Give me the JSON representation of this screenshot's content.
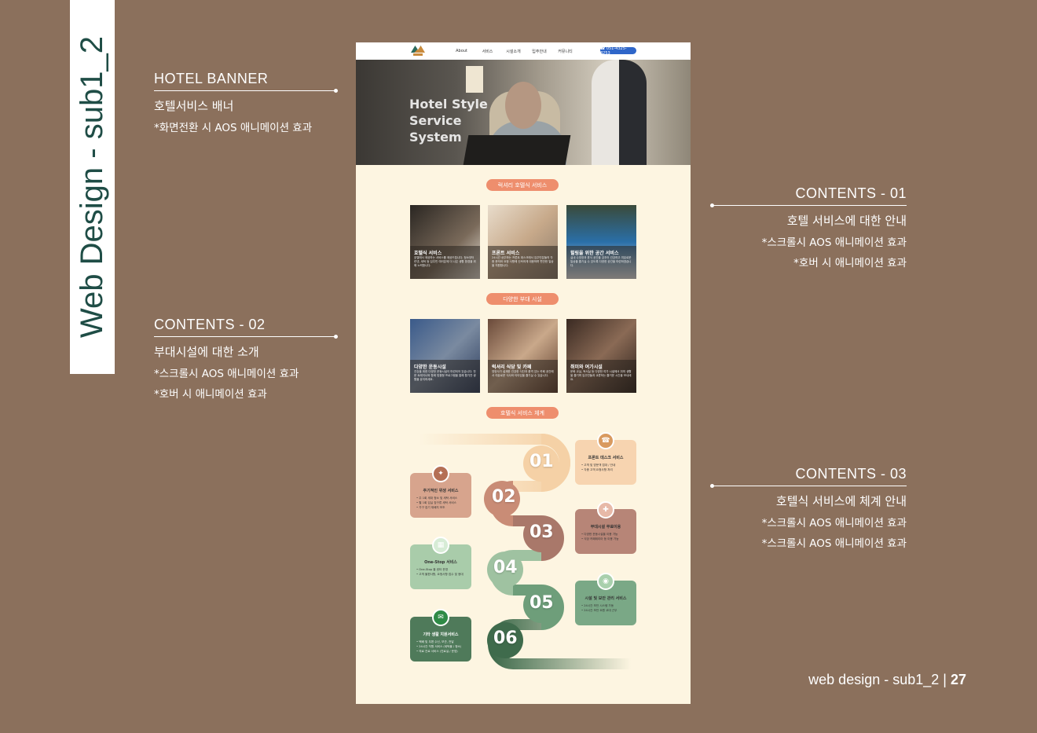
{
  "sidebar_title": "Web Design - sub1_2",
  "annotations": {
    "banner": {
      "title": "HOTEL BANNER",
      "sub": "호텔서비스 배너",
      "notes": [
        "*화면전환 시 AOS 애니메이션 효과"
      ]
    },
    "c01": {
      "title": "CONTENTS - 01",
      "sub": "호텔 서비스에 대한 안내",
      "notes": [
        "*스크롤시 AOS 애니메이션 효과",
        "*호버 시 애니메이션 효과"
      ]
    },
    "c02": {
      "title": "CONTENTS - 02",
      "sub": "부대시설에 대한 소개",
      "notes": [
        "*스크롤시 AOS 애니메이션 효과",
        "*호버 시 애니메이션 효과"
      ]
    },
    "c03": {
      "title": "CONTENTS - 03",
      "sub": "호텔식 서비스에 체계 안내",
      "notes": [
        "*스크롤시 AOS 애니메이션 효과",
        "*스크롤시 AOS 애니메이션 효과"
      ]
    }
  },
  "footer": {
    "label": "web design - sub1_2",
    "sep": " | ",
    "page": "27"
  },
  "mock": {
    "nav": [
      "About",
      "서비스",
      "시설소개",
      "입주안내",
      "커뮤니티"
    ],
    "phone": "☎ 051-4325-8253",
    "hero": [
      "Hotel Style",
      "Service",
      "System"
    ],
    "sections": [
      "럭셔리 호텔식 서비스",
      "다양한 부대 시설",
      "호텔식 서비스 체계"
    ],
    "cards1": [
      {
        "title": "호텔식 서비스",
        "desc": "호텔에서 제공하는 서비스를 제공드립니다. 청소부터 린넨, 세탁 등 입주민 여러분께 더 나은 생활 환경을 위해 노력합니다."
      },
      {
        "title": "프론트 서비스",
        "desc": "24시간 상주하는 프론트 데스크에서 입주민분들의 각종 문의와 요청 사항에 신속하게 대응하며 편안한 일상을 지원합니다."
      },
      {
        "title": "힐링을 위한 공간 서비스",
        "desc": "실내 수영장과 휴식 공간을 갖추어 건강하고 여유로운 일상을 즐기실 수 있도록 다양한 공간을 마련하였습니다."
      }
    ],
    "cards2": [
      {
        "title": "다양한 운동시설",
        "desc": "건강을 위한 다양한 운동시설이 마련되어 있습니다. 전문 트레이너와 함께 맞춤형 프로그램을 통해 활기찬 생활을 유지하세요."
      },
      {
        "title": "럭셔리 식당 및 카페",
        "desc": "영양사가 설계한 건강한 식단과 품격 있는 카페 공간에서 여유로운 식사와 티타임을 즐기실 수 있습니다."
      },
      {
        "title": "취미와 여가시설",
        "desc": "문화 교실, 독서실 등 다양한 여가 시설에서 취미 생활을 즐기며 입주민들과 교류하는 즐거운 시간을 보내세요."
      }
    ],
    "steps": [
      {
        "num": "01",
        "title": "프론트 데스크 서비스",
        "items": [
          "• 고객 및 방문객 접대 / 안내",
          "• 각종 고객 요청사항 처리"
        ]
      },
      {
        "num": "02",
        "title": "주기적인 위생 서비스",
        "items": [
          "• 주 1회 세대 청소 및 세탁 서비스",
          "• 월 1회 입실 침구류 세탁 서비스",
          "• 가구 집기 재배치 보조"
        ]
      },
      {
        "num": "03",
        "title": "부대시설 무료이용",
        "items": [
          "• 다양한 운동시설을 이용 가능",
          "• 식당 카페테리아 등 이용 가능"
        ]
      },
      {
        "num": "04",
        "title": "One-Stop 서비스",
        "items": [
          "• One-Stop 을 센터 운영",
          "• 고객 불편사항, 요청사항 접수 및 응대"
        ]
      },
      {
        "num": "05",
        "title": "시설 및 보안 관리 서비스",
        "items": [
          "• 24시간 보안 시스템 가동",
          "• 24시간 보안 요원 교대 근무"
        ]
      },
      {
        "num": "06",
        "title": "기타 생활 지원서비스",
        "items": [
          "• 택배 및 우편 수신, 보관, 전달",
          "• 24시간 직원 서비스 (세탁물 / 청소)",
          "• 의료 진료 서비스 (진료실 / 운영)"
        ]
      }
    ],
    "step_colors": [
      "#f5d1a6",
      "#c98c76",
      "#a9786a",
      "#9fc2a1",
      "#6e9e7a",
      "#3f6b4c"
    ]
  }
}
